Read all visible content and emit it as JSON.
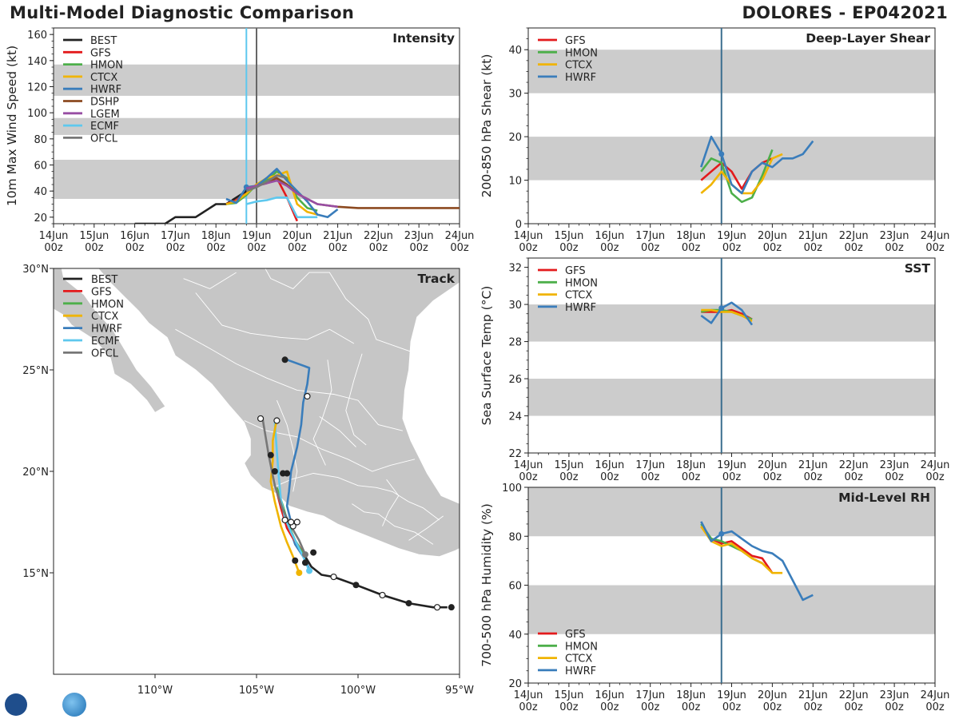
{
  "header": {
    "title": "Multi-Model Diagnostic Comparison",
    "storm": "DOLORES - EP042021"
  },
  "colors": {
    "BEST": "#222222",
    "GFS": "#e31a1c",
    "HMON": "#4daf4a",
    "CTCX": "#f0b400",
    "HWRF": "#3a7dbb",
    "DSHP": "#8c4a20",
    "LGEM": "#984ea3",
    "ECMF": "#5ec8ee",
    "OFCL": "#777777",
    "shade": "#cccccc",
    "vline1": "#5ec8ee",
    "vline2": "#666666",
    "land": "#c6c6c6",
    "border": "#ffffff"
  },
  "time_ticks": [
    "14Jun|00z",
    "15Jun|00z",
    "16Jun|00z",
    "17Jun|00z",
    "18Jun|00z",
    "19Jun|00z",
    "20Jun|00z",
    "21Jun|00z",
    "22Jun|00z",
    "23Jun|00z",
    "24Jun|00z"
  ],
  "chart_data": [
    {
      "id": "intensity",
      "type": "line",
      "title": "Intensity",
      "ylabel": "10m Max Wind Speed (kt)",
      "xlabel": "",
      "xlim": [
        0,
        10
      ],
      "ylim": [
        15,
        165
      ],
      "yticks": [
        20,
        40,
        60,
        80,
        100,
        120,
        140,
        160
      ],
      "shaded": [
        [
          34,
          64
        ],
        [
          83,
          96
        ],
        [
          113,
          137
        ]
      ],
      "vlines": [
        4.75,
        5.0
      ],
      "legend": [
        "BEST",
        "GFS",
        "HMON",
        "CTCX",
        "HWRF",
        "DSHP",
        "LGEM",
        "ECMF",
        "OFCL"
      ],
      "series": [
        {
          "name": "BEST",
          "x": [
            2.0,
            2.25,
            2.5,
            2.75,
            3.0,
            3.25,
            3.5,
            3.75,
            4.0,
            4.25,
            4.5,
            4.75
          ],
          "y": [
            15,
            15,
            15,
            15,
            20,
            20,
            20,
            25,
            30,
            30,
            35,
            40
          ]
        },
        {
          "name": "GFS",
          "x": [
            4.25,
            4.5,
            4.75,
            5.0,
            5.25,
            5.5,
            5.75,
            6.0
          ],
          "y": [
            30,
            33,
            38,
            45,
            47,
            50,
            35,
            17
          ]
        },
        {
          "name": "HMON",
          "x": [
            4.25,
            4.5,
            4.75,
            5.0,
            5.25,
            5.5,
            5.75,
            6.0,
            6.25,
            6.5
          ],
          "y": [
            30,
            31,
            37,
            45,
            48,
            55,
            50,
            35,
            27,
            25
          ]
        },
        {
          "name": "CTCX",
          "x": [
            4.25,
            4.5,
            4.75,
            5.0,
            5.25,
            5.5,
            5.75,
            6.0,
            6.25,
            6.5
          ],
          "y": [
            30,
            32,
            38,
            45,
            50,
            52,
            55,
            30,
            24,
            22
          ]
        },
        {
          "name": "HWRF",
          "x": [
            4.25,
            4.5,
            4.75,
            5.0,
            5.25,
            5.5,
            5.75,
            6.0,
            6.25,
            6.5,
            6.75,
            7.0
          ],
          "y": [
            34,
            31,
            43,
            44,
            50,
            57,
            48,
            40,
            32,
            22,
            20,
            26
          ]
        },
        {
          "name": "DSHP",
          "x": [
            4.75,
            5.0,
            5.25,
            5.5,
            5.75,
            6.0,
            6.5,
            7.0,
            7.5,
            8.0,
            8.5,
            9.0,
            9.5,
            10.0
          ],
          "y": [
            42,
            44,
            46,
            50,
            45,
            38,
            30,
            28,
            27,
            27,
            27,
            27,
            27,
            27
          ]
        },
        {
          "name": "LGEM",
          "x": [
            4.75,
            5.0,
            5.25,
            5.5,
            5.75,
            6.0,
            6.5,
            7.0
          ],
          "y": [
            42,
            44,
            46,
            48,
            44,
            38,
            30,
            28
          ]
        },
        {
          "name": "ECMF",
          "x": [
            4.75,
            5.0,
            5.25,
            5.5,
            5.75,
            6.0,
            6.25,
            6.5
          ],
          "y": [
            30,
            32,
            33,
            35,
            35,
            20,
            20,
            20
          ]
        },
        {
          "name": "OFCL",
          "x": [
            4.75,
            5.0,
            5.25,
            5.5,
            5.75
          ],
          "y": [
            40,
            43,
            47,
            52,
            50
          ]
        }
      ]
    },
    {
      "id": "shear",
      "type": "line",
      "title": "Deep-Layer Shear",
      "ylabel": "200-850 hPa Shear (kt)",
      "xlabel": "",
      "xlim": [
        0,
        10
      ],
      "ylim": [
        0,
        45
      ],
      "yticks": [
        0,
        10,
        20,
        30,
        40
      ],
      "shaded": [
        [
          10,
          20
        ],
        [
          30,
          40
        ]
      ],
      "vlines": [
        4.75
      ],
      "legend": [
        "GFS",
        "HMON",
        "CTCX",
        "HWRF"
      ],
      "series": [
        {
          "name": "GFS",
          "x": [
            4.25,
            4.5,
            4.75,
            5.0,
            5.25,
            5.5,
            5.75,
            6.0
          ],
          "y": [
            10,
            12,
            14,
            12,
            8,
            12,
            14,
            15
          ]
        },
        {
          "name": "HMON",
          "x": [
            4.25,
            4.5,
            4.75,
            5.0,
            5.25,
            5.5,
            5.75,
            6.0
          ],
          "y": [
            12,
            15,
            14,
            7,
            5,
            6,
            11,
            17
          ]
        },
        {
          "name": "CTCX",
          "x": [
            4.25,
            4.5,
            4.75,
            5.0,
            5.25,
            5.5,
            5.75,
            6.0,
            6.25
          ],
          "y": [
            7,
            9,
            12,
            9,
            7,
            7,
            10,
            15,
            16
          ]
        },
        {
          "name": "HWRF",
          "x": [
            4.25,
            4.5,
            4.75,
            5.0,
            5.25,
            5.5,
            5.75,
            6.0,
            6.25,
            6.5,
            6.75,
            7.0
          ],
          "y": [
            13,
            20,
            16,
            9,
            7,
            12,
            14,
            13,
            15,
            15,
            16,
            19
          ]
        }
      ]
    },
    {
      "id": "sst",
      "type": "line",
      "title": "SST",
      "ylabel": "Sea Surface Temp (°C)",
      "xlabel": "",
      "xlim": [
        0,
        10
      ],
      "ylim": [
        22,
        32.5
      ],
      "yticks": [
        22,
        24,
        26,
        28,
        30,
        32
      ],
      "shaded": [
        [
          24,
          26
        ],
        [
          28,
          30
        ]
      ],
      "vlines": [
        4.75
      ],
      "legend": [
        "GFS",
        "HMON",
        "CTCX",
        "HWRF"
      ],
      "series": [
        {
          "name": "GFS",
          "x": [
            4.25,
            4.5,
            4.75,
            5.0,
            5.25,
            5.5
          ],
          "y": [
            29.6,
            29.6,
            29.6,
            29.7,
            29.5,
            29.2
          ]
        },
        {
          "name": "HMON",
          "x": [
            4.25,
            4.5,
            4.75,
            5.0,
            5.25,
            5.5
          ],
          "y": [
            29.6,
            29.7,
            29.7,
            29.6,
            29.4,
            29.2
          ]
        },
        {
          "name": "CTCX",
          "x": [
            4.25,
            4.5,
            4.75,
            5.0,
            5.25,
            5.5
          ],
          "y": [
            29.7,
            29.7,
            29.6,
            29.6,
            29.4,
            29.1
          ]
        },
        {
          "name": "HWRF",
          "x": [
            4.25,
            4.5,
            4.75,
            5.0,
            5.25,
            5.5
          ],
          "y": [
            29.4,
            29.0,
            29.8,
            30.1,
            29.7,
            28.9
          ]
        }
      ]
    },
    {
      "id": "rh",
      "type": "line",
      "title": "Mid-Level RH",
      "ylabel": "700-500 hPa Humidity (%)",
      "xlabel": "",
      "xlim": [
        0,
        10
      ],
      "ylim": [
        20,
        100
      ],
      "yticks": [
        20,
        40,
        60,
        80,
        100
      ],
      "shaded": [
        [
          40,
          60
        ],
        [
          80,
          100
        ]
      ],
      "vlines": [
        4.75
      ],
      "legend": [
        "GFS",
        "HMON",
        "CTCX",
        "HWRF"
      ],
      "series": [
        {
          "name": "GFS",
          "x": [
            4.25,
            4.5,
            4.75,
            5.0,
            5.25,
            5.5,
            5.75,
            6.0
          ],
          "y": [
            84,
            79,
            77,
            78,
            75,
            72,
            71,
            65
          ]
        },
        {
          "name": "HMON",
          "x": [
            4.25,
            4.5,
            4.75,
            5.0,
            5.25,
            5.5,
            5.75
          ],
          "y": [
            85,
            79,
            78,
            76,
            74,
            71,
            69
          ]
        },
        {
          "name": "CTCX",
          "x": [
            4.25,
            4.5,
            4.75,
            5.0,
            5.25,
            5.5,
            5.75,
            6.0,
            6.25
          ],
          "y": [
            84,
            78,
            76,
            77,
            74,
            71,
            69,
            65,
            65
          ]
        },
        {
          "name": "HWRF",
          "x": [
            4.25,
            4.5,
            4.75,
            5.0,
            5.25,
            5.5,
            5.75,
            6.0,
            6.25,
            6.5,
            6.75,
            7.0
          ],
          "y": [
            86,
            78,
            81,
            82,
            79,
            76,
            74,
            73,
            70,
            62,
            54,
            56
          ]
        }
      ]
    },
    {
      "id": "track",
      "type": "scatter",
      "title": "Track",
      "xlim": [
        -115,
        -95
      ],
      "ylim": [
        10,
        30
      ],
      "xticks": [
        {
          "v": -110,
          "label": "110°W"
        },
        {
          "v": -105,
          "label": "105°W"
        },
        {
          "v": -100,
          "label": "100°W"
        },
        {
          "v": -95,
          "label": "95°W"
        }
      ],
      "yticks": [
        {
          "v": 15,
          "label": "15°N"
        },
        {
          "v": 20,
          "label": "20°N"
        },
        {
          "v": 25,
          "label": "25°N"
        },
        {
          "v": 30,
          "label": "30°N"
        }
      ],
      "legend": [
        "BEST",
        "GFS",
        "HMON",
        "CTCX",
        "HWRF",
        "ECMF",
        "OFCL"
      ],
      "series": [
        {
          "name": "BEST",
          "lon": [
            -95.6,
            -96.3,
            -97.5,
            -98.8,
            -100.1,
            -101.2,
            -101.8,
            -102.3,
            -102.6
          ],
          "lat": [
            13.3,
            13.3,
            13.5,
            13.9,
            14.4,
            14.8,
            14.9,
            15.3,
            15.8
          ]
        },
        {
          "name": "GFS",
          "lon": [
            -102.6,
            -102.9,
            -103.2,
            -103.5,
            -103.8,
            -104.0
          ],
          "lat": [
            15.8,
            16.3,
            16.7,
            17.2,
            18.2,
            19.0
          ]
        },
        {
          "name": "HMON",
          "lon": [
            -102.5,
            -102.8,
            -103.1,
            -103.4,
            -103.7,
            -104.0
          ],
          "lat": [
            15.5,
            16.1,
            16.6,
            17.3,
            18.3,
            19.2
          ]
        },
        {
          "name": "CTCX",
          "lon": [
            -102.9,
            -103.2,
            -103.5,
            -103.8,
            -104.1,
            -104.3,
            -104.2,
            -104.2,
            -104.0
          ],
          "lat": [
            15.0,
            15.8,
            16.5,
            17.3,
            18.5,
            19.5,
            20.5,
            21.5,
            22.6
          ]
        },
        {
          "name": "HWRF",
          "lon": [
            -102.4,
            -102.7,
            -103.1,
            -103.3,
            -103.3,
            -103.5,
            -103.4,
            -103.3,
            -103.0,
            -102.8,
            -102.7,
            -102.5,
            -102.4,
            -103.5
          ],
          "lat": [
            15.2,
            15.8,
            16.4,
            17.0,
            17.5,
            18.3,
            19.0,
            20.0,
            21.2,
            22.3,
            23.4,
            24.3,
            25.1,
            25.5
          ]
        },
        {
          "name": "ECMF",
          "lon": [
            -102.4,
            -102.7,
            -103.0,
            -103.3,
            -103.6,
            -103.8,
            -103.9,
            -104.0,
            -104.1
          ],
          "lat": [
            15.1,
            15.8,
            16.4,
            17.0,
            17.7,
            18.6,
            19.7,
            21.0,
            22.4
          ]
        },
        {
          "name": "OFCL",
          "lon": [
            -102.6,
            -102.9,
            -103.3,
            -103.7,
            -104.1,
            -104.4,
            -104.7
          ],
          "lat": [
            15.9,
            16.6,
            17.3,
            18.1,
            19.3,
            20.8,
            22.6
          ]
        }
      ],
      "markers_filled": [
        {
          "lon": -95.4,
          "lat": 13.3
        },
        {
          "lon": -97.5,
          "lat": 13.5
        },
        {
          "lon": -100.1,
          "lat": 14.4
        },
        {
          "lon": -102.2,
          "lat": 16.0
        },
        {
          "lon": -102.6,
          "lat": 15.5
        },
        {
          "lon": -103.1,
          "lat": 15.6
        },
        {
          "lon": -104.1,
          "lat": 20.0
        },
        {
          "lon": -103.7,
          "lat": 19.9
        },
        {
          "lon": -103.5,
          "lat": 19.9
        },
        {
          "lon": -104.3,
          "lat": 20.8
        },
        {
          "lon": -103.6,
          "lat": 25.5
        }
      ],
      "markers_open": [
        {
          "lon": -96.1,
          "lat": 13.3
        },
        {
          "lon": -98.8,
          "lat": 13.9
        },
        {
          "lon": -101.2,
          "lat": 14.8
        },
        {
          "lon": -103.2,
          "lat": 17.3
        },
        {
          "lon": -103.0,
          "lat": 17.5
        },
        {
          "lon": -103.3,
          "lat": 17.5
        },
        {
          "lon": -103.6,
          "lat": 17.6
        },
        {
          "lon": -104.8,
          "lat": 22.6
        },
        {
          "lon": -104.0,
          "lat": 22.5
        },
        {
          "lon": -102.5,
          "lat": 23.7
        }
      ],
      "markers_colored": [
        {
          "name": "CTCX",
          "lon": -102.9,
          "lat": 15.0
        },
        {
          "name": "ECMF",
          "lon": -102.4,
          "lat": 15.1
        },
        {
          "name": "OFCL",
          "lon": -102.6,
          "lat": 15.9
        }
      ]
    }
  ]
}
